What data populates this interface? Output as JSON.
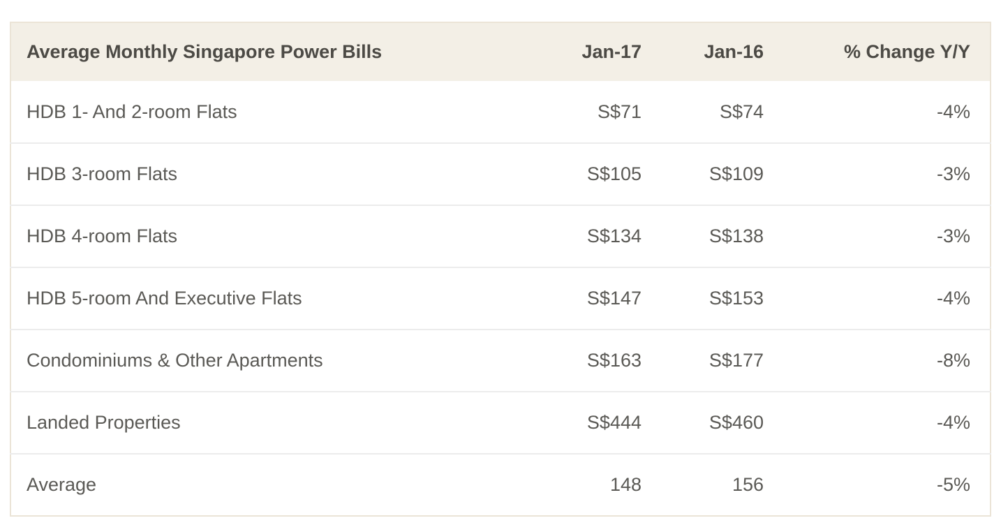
{
  "chart_data": {
    "type": "table",
    "title": "Average Monthly Singapore Power Bills",
    "columns": [
      "Jan-17",
      "Jan-16",
      "% Change Y/Y"
    ],
    "rows": [
      [
        "HDB 1- And 2-room Flats",
        "S$71",
        "S$74",
        "-4%"
      ],
      [
        "HDB 3-room Flats",
        "S$105",
        "S$109",
        "-3%"
      ],
      [
        "HDB 4-room Flats",
        "S$134",
        "S$138",
        "-3%"
      ],
      [
        "HDB 5-room And Executive Flats",
        "S$147",
        "S$153",
        "-4%"
      ],
      [
        "Condominiums & Other Apartments",
        "S$163",
        "S$177",
        "-8%"
      ],
      [
        "Landed Properties",
        "S$444",
        "S$460",
        "-4%"
      ],
      [
        "Average",
        "148",
        "156",
        "-5%"
      ]
    ],
    "units": "SGD per month",
    "layout": "header row cream background, values right-aligned"
  },
  "colors": {
    "page_bg": "#ffffff",
    "header_bg": "#f3efe6",
    "header_text": "#4c4a45",
    "body_text": "#5a5955",
    "row_divider": "#ececec",
    "table_border": "#ebe4d7"
  }
}
